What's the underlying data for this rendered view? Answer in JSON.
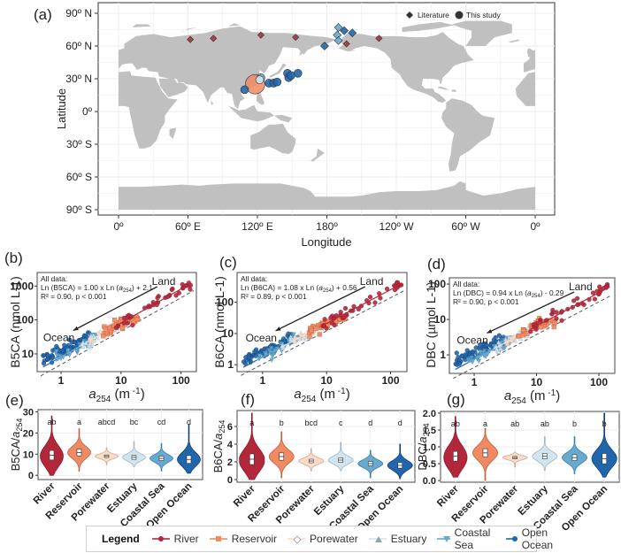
{
  "chart_data": [
    {
      "panel": "(a)",
      "type": "scatter",
      "subtype": "map",
      "xlabel": "Longitude",
      "ylabel": "Latitude",
      "xticks": [
        "0º",
        "60º E",
        "120º E",
        "180º",
        "120º W",
        "60º W",
        "0º"
      ],
      "yticks": [
        "90º N",
        "60º N",
        "30º N",
        "0º",
        "30º S",
        "60º S",
        "90º S"
      ],
      "legend": [
        {
          "label": "Literature",
          "shape": "diamond"
        },
        {
          "label": "This study",
          "shape": "circle"
        }
      ],
      "legend_placement": "top-right",
      "points": [
        {
          "lon": 62,
          "lat": 66,
          "source": "Literature",
          "type": "River"
        },
        {
          "lon": 82,
          "lat": 67,
          "source": "Literature",
          "type": "River"
        },
        {
          "lon": 123,
          "lat": 70,
          "source": "Literature",
          "type": "River"
        },
        {
          "lon": 153,
          "lat": 68,
          "source": "Literature",
          "type": "River"
        },
        {
          "lon": 197,
          "lat": 62,
          "source": "Literature",
          "type": "River"
        },
        {
          "lon": 225,
          "lat": 67,
          "source": "Literature",
          "type": "River"
        },
        {
          "lon": 190,
          "lat": 77,
          "source": "Literature",
          "type": "Coastal Sea"
        },
        {
          "lon": 195,
          "lat": 74,
          "source": "Literature",
          "type": "Open Ocean"
        },
        {
          "lon": 202,
          "lat": 72,
          "source": "Literature",
          "type": "Open Ocean"
        },
        {
          "lon": 189,
          "lat": 70,
          "source": "Literature",
          "type": "Coastal Sea"
        },
        {
          "lon": 190,
          "lat": 65,
          "source": "Literature",
          "type": "Coastal Sea"
        },
        {
          "lon": 178,
          "lat": 60,
          "source": "Literature",
          "type": "Open Ocean"
        },
        {
          "lon": 118,
          "lat": 25,
          "source": "This study",
          "type": "Reservoir",
          "size": "large"
        },
        {
          "lon": 123,
          "lat": 31,
          "source": "This study",
          "type": "Coastal Sea"
        },
        {
          "lon": 122,
          "lat": 29,
          "source": "This study",
          "type": "Estuary"
        },
        {
          "lon": 109,
          "lat": 20,
          "source": "This study",
          "type": "Open Ocean"
        },
        {
          "lon": 130,
          "lat": 26,
          "source": "This study",
          "type": "Open Ocean"
        },
        {
          "lon": 134,
          "lat": 26,
          "source": "This study",
          "type": "Open Ocean"
        },
        {
          "lon": 137,
          "lat": 27,
          "source": "This study",
          "type": "Open Ocean"
        },
        {
          "lon": 146,
          "lat": 35,
          "source": "This study",
          "type": "Open Ocean"
        },
        {
          "lon": 147,
          "lat": 31,
          "source": "This study",
          "type": "Open Ocean"
        },
        {
          "lon": 149,
          "lat": 33,
          "source": "This study",
          "type": "Open Ocean"
        },
        {
          "lon": 155,
          "lat": 35,
          "source": "This study",
          "type": "Open Ocean"
        }
      ]
    },
    {
      "panel": "(b)",
      "type": "scatter",
      "xlabel": "a254 (m -1)",
      "ylabel": "B5CA (nmol L-1)",
      "xscale": "log",
      "yscale": "log",
      "xlim": [
        0.4,
        180
      ],
      "ylim": [
        3,
        2500
      ],
      "xticks": [
        1,
        10,
        100
      ],
      "yticks": [
        10,
        100,
        1000
      ],
      "annotation": [
        "All data:",
        "Ln (B5CA) = 1.00 x Ln (a254) + 2.1",
        "R² = 0.90, p < 0.001"
      ],
      "arrow_labels": {
        "start": "Land",
        "end": "Ocean"
      },
      "fit": {
        "slope": 1.0,
        "intercept": 2.1,
        "r2": 0.9,
        "p": "< 0.001"
      }
    },
    {
      "panel": "(c)",
      "type": "scatter",
      "xlabel": "a254 (m -1)",
      "ylabel": "B6CA (nmol L-1)",
      "xscale": "log",
      "yscale": "log",
      "xlim": [
        0.4,
        180
      ],
      "ylim": [
        0.6,
        900
      ],
      "xticks": [
        1,
        10,
        100
      ],
      "yticks": [
        1,
        10,
        100
      ],
      "annotation": [
        "All data:",
        "Ln (B6CA) = 1.08 x Ln (a254) + 0.56",
        "R² = 0.89, p < 0.001"
      ],
      "arrow_labels": {
        "start": "Land",
        "end": "Ocean"
      },
      "fit": {
        "slope": 1.08,
        "intercept": 0.56,
        "r2": 0.89,
        "p": "< 0.001"
      }
    },
    {
      "panel": "(d)",
      "type": "scatter",
      "xlabel": "a254 (m -1)",
      "ylabel": "DBC (µmol L-1)",
      "xscale": "log",
      "yscale": "log",
      "xlim": [
        0.4,
        180
      ],
      "ylim": [
        0.3,
        150
      ],
      "xticks": [
        1,
        10,
        100
      ],
      "yticks": [
        1,
        10,
        100
      ],
      "annotation": [
        "All data:",
        "Ln (DBC) = 0.94 x Ln (a254) - 0.29",
        "R² = 0.90, p < 0.001"
      ],
      "arrow_labels": {
        "start": "Land",
        "end": "Ocean"
      },
      "fit": {
        "slope": 0.94,
        "intercept": -0.29,
        "r2": 0.9,
        "p": "< 0.001"
      }
    },
    {
      "panel": "(e)",
      "type": "violin",
      "ylabel": "B5CA/a254",
      "ylim": [
        -2,
        31
      ],
      "yticks": [
        0,
        10,
        20,
        30
      ],
      "categories": [
        "River",
        "Reservoir",
        "Porewater",
        "Estuary",
        "Coastal Sea",
        "Open Ocean"
      ],
      "medians": [
        9.5,
        10.8,
        9.0,
        8.5,
        8.0,
        7.5
      ],
      "ranges": [
        [
          0,
          28
        ],
        [
          2,
          22
        ],
        [
          5,
          13
        ],
        [
          4,
          16
        ],
        [
          2,
          15
        ],
        [
          1,
          24
        ]
      ],
      "letters": [
        "ab",
        "a",
        "abcd",
        "bc",
        "cd",
        "d"
      ]
    },
    {
      "panel": "(f)",
      "type": "violin",
      "ylabel": "B6CA/a254",
      "ylim": [
        -0.3,
        7.8
      ],
      "yticks": [
        0,
        2,
        4,
        6
      ],
      "categories": [
        "River",
        "Reservoir",
        "Porewater",
        "Estuary",
        "Coastal Sea",
        "Open Ocean"
      ],
      "medians": [
        2.3,
        2.6,
        2.1,
        2.2,
        1.8,
        1.6
      ],
      "ranges": [
        [
          0,
          7.5
        ],
        [
          0.2,
          5.4
        ],
        [
          1,
          3.5
        ],
        [
          1,
          4.2
        ],
        [
          0.2,
          3.3
        ],
        [
          0.1,
          4
        ]
      ],
      "letters": [
        "a",
        "b",
        "bcd",
        "c",
        "d",
        "d"
      ]
    },
    {
      "panel": "(g)",
      "type": "violin",
      "ylabel": "DBC/a254",
      "ylim": [
        -0.05,
        2.05
      ],
      "yticks": [
        "0.0",
        "0.5",
        "1.0",
        "1.5",
        "2.0"
      ],
      "categories": [
        "River",
        "Reservoir",
        "Porewater",
        "Estuary",
        "Coastal Sea",
        "Open Ocean"
      ],
      "medians": [
        0.72,
        0.82,
        0.68,
        0.72,
        0.68,
        0.65
      ],
      "ranges": [
        [
          0.1,
          1.9
        ],
        [
          0,
          1.55
        ],
        [
          0.4,
          0.85
        ],
        [
          0.3,
          1.3
        ],
        [
          0.2,
          1.3
        ],
        [
          0.1,
          2
        ]
      ],
      "letters": [
        "ab",
        "a",
        "ab",
        "ab",
        "b",
        "b"
      ]
    }
  ],
  "legend": {
    "title": "Legend",
    "items": [
      {
        "label": "River",
        "color": "#b2283a",
        "marker": "circle"
      },
      {
        "label": "Reservoir",
        "color": "#ef8a62",
        "marker": "square"
      },
      {
        "label": "Porewater",
        "color": "#fddbc7",
        "marker": "diamond"
      },
      {
        "label": "Estuary",
        "color": "#d1e5f0",
        "marker": "triangle-up"
      },
      {
        "label": "Coastal Sea",
        "color": "#67a9cf",
        "marker": "triangle-down"
      },
      {
        "label": "Open Ocean",
        "color": "#2166ac",
        "marker": "circle"
      }
    ]
  },
  "panel_labels": [
    "(a)",
    "(b)",
    "(c)",
    "(d)",
    "(e)",
    "(f)",
    "(g)"
  ],
  "colors": {
    "land": "#c0c0c0",
    "grid": "#ebebeb",
    "dashed_1to1": "#555555"
  }
}
